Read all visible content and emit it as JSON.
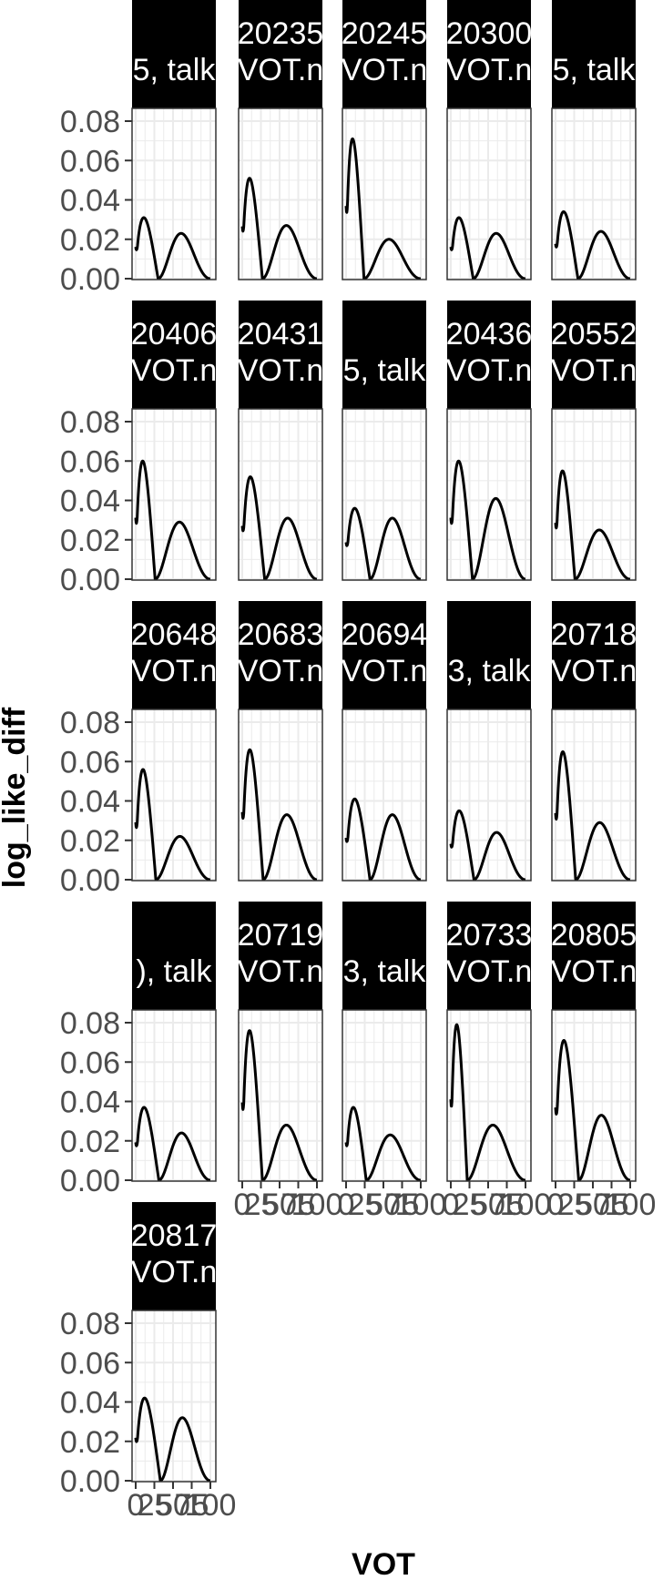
{
  "chart_data": {
    "type": "line",
    "xlabel": "VOT",
    "ylabel": "log_like_diff",
    "xlim": [
      0,
      100
    ],
    "ylim": [
      0,
      0.08
    ],
    "x_ticks": [
      0,
      25,
      50,
      75,
      100
    ],
    "x_tick_labels": [
      "0",
      "25",
      "50",
      "75",
      "100"
    ],
    "y_ticks": [
      0,
      0.02,
      0.04,
      0.06,
      0.08
    ],
    "y_tick_labels": [
      "0.00",
      "0.02",
      "0.04",
      "0.06",
      "0.08"
    ],
    "grid": true,
    "line_color": "#000000",
    "strip_fill": "#000000",
    "panel_border": "#333333",
    "grid_color": "#ebebeb",
    "panels": [
      {
        "strip": [
          "",
          "5, talk"
        ],
        "peak1": 0.031,
        "zero": 30,
        "peak2": 0.023
      },
      {
        "strip": [
          "20235",
          "VOT.n"
        ],
        "peak1": 0.051,
        "zero": 27,
        "peak2": 0.027
      },
      {
        "strip": [
          "20245",
          "VOT.n"
        ],
        "peak1": 0.071,
        "zero": 24,
        "peak2": 0.02
      },
      {
        "strip": [
          "20300",
          "VOT.n"
        ],
        "peak1": 0.031,
        "zero": 30,
        "peak2": 0.023
      },
      {
        "strip": [
          "",
          "5, talk"
        ],
        "peak1": 0.034,
        "zero": 30,
        "peak2": 0.024
      },
      {
        "strip": [
          "20406",
          "VOT.n"
        ],
        "peak1": 0.06,
        "zero": 26,
        "peak2": 0.029
      },
      {
        "strip": [
          "20431",
          "VOT.n"
        ],
        "peak1": 0.052,
        "zero": 30,
        "peak2": 0.031
      },
      {
        "strip": [
          "",
          "5, talk"
        ],
        "peak1": 0.036,
        "zero": 32,
        "peak2": 0.031
      },
      {
        "strip": [
          "20436",
          "VOT.n"
        ],
        "peak1": 0.06,
        "zero": 29,
        "peak2": 0.041
      },
      {
        "strip": [
          "20552",
          "VOT.n"
        ],
        "peak1": 0.055,
        "zero": 26,
        "peak2": 0.025
      },
      {
        "strip": [
          "20648",
          "VOT.n"
        ],
        "peak1": 0.056,
        "zero": 27,
        "peak2": 0.022
      },
      {
        "strip": [
          "20683",
          "VOT.n"
        ],
        "peak1": 0.066,
        "zero": 28,
        "peak2": 0.033
      },
      {
        "strip": [
          "20694",
          "VOT.n"
        ],
        "peak1": 0.041,
        "zero": 32,
        "peak2": 0.033
      },
      {
        "strip": [
          "",
          "3, talk"
        ],
        "peak1": 0.035,
        "zero": 31,
        "peak2": 0.024
      },
      {
        "strip": [
          "20718",
          "VOT.n"
        ],
        "peak1": 0.065,
        "zero": 27,
        "peak2": 0.029
      },
      {
        "strip": [
          "",
          "), talk"
        ],
        "peak1": 0.037,
        "zero": 31,
        "peak2": 0.024
      },
      {
        "strip": [
          "20719",
          "VOT.n"
        ],
        "peak1": 0.076,
        "zero": 27,
        "peak2": 0.028
      },
      {
        "strip": [
          "",
          "3, talk"
        ],
        "peak1": 0.037,
        "zero": 27,
        "peak2": 0.023
      },
      {
        "strip": [
          "20733",
          "VOT.n"
        ],
        "peak1": 0.079,
        "zero": 22,
        "peak2": 0.028
      },
      {
        "strip": [
          "20805",
          "VOT.n"
        ],
        "peak1": 0.071,
        "zero": 31,
        "peak2": 0.033
      },
      {
        "strip": [
          "20817",
          "VOT.n"
        ],
        "peak1": 0.042,
        "zero": 33,
        "peak2": 0.032
      }
    ]
  }
}
